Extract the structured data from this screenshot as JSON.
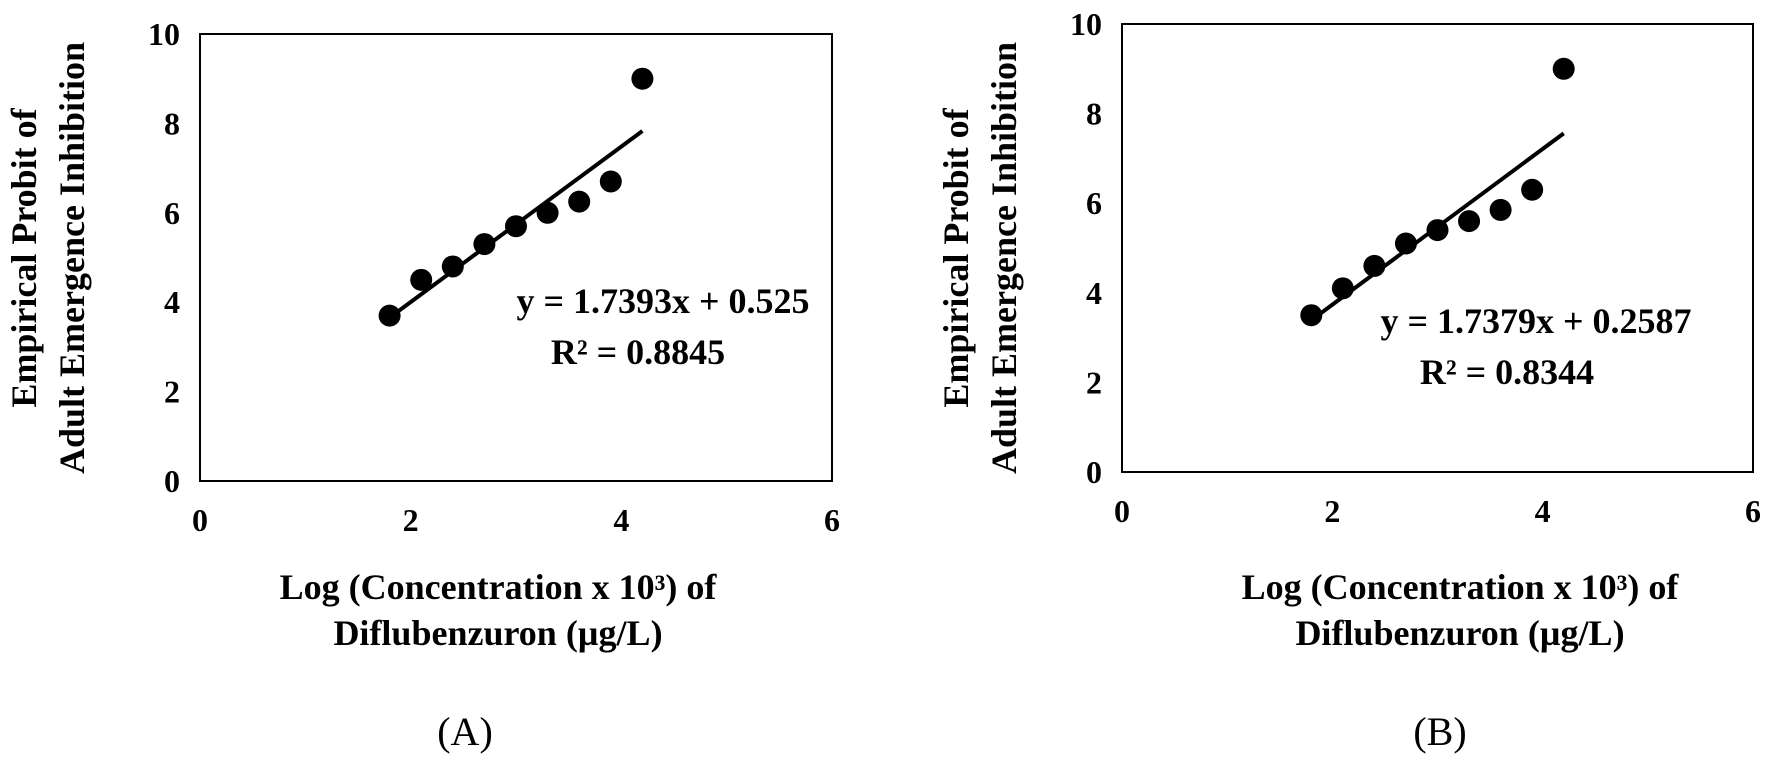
{
  "chart_data": [
    {
      "type": "scatter",
      "panel_label": "(A)",
      "xlabel_line1": "Log (Concentration x 10³) of",
      "xlabel_line2": "Diflubenzuron (µg/L)",
      "ylabel_line1": "Empirical Probit of",
      "ylabel_line2": "Adult Emergence Inhibition",
      "xlim": [
        0,
        6
      ],
      "ylim": [
        0,
        10
      ],
      "xticks": [
        "0",
        "2",
        "4",
        "6"
      ],
      "yticks": [
        "0",
        "2",
        "4",
        "6",
        "8",
        "10"
      ],
      "points": [
        {
          "x": 1.8,
          "y": 3.7
        },
        {
          "x": 2.1,
          "y": 4.5
        },
        {
          "x": 2.4,
          "y": 4.8
        },
        {
          "x": 2.7,
          "y": 5.3
        },
        {
          "x": 3.0,
          "y": 5.7
        },
        {
          "x": 3.3,
          "y": 6.0
        },
        {
          "x": 3.6,
          "y": 6.25
        },
        {
          "x": 3.9,
          "y": 6.7
        },
        {
          "x": 4.2,
          "y": 9.0
        }
      ],
      "trendline": {
        "slope": 1.7393,
        "intercept": 0.525,
        "x_start": 1.8,
        "x_end": 4.2
      },
      "equation": "y = 1.7393x + 0.525",
      "r_squared": "R² = 0.8845"
    },
    {
      "type": "scatter",
      "panel_label": "(B)",
      "xlabel_line1": "Log (Concentration x 10³) of",
      "xlabel_line2": "Diflubenzuron (µg/L)",
      "ylabel_line1": "Empirical Probit of",
      "ylabel_line2": "Adult Emergence Inhibition",
      "xlim": [
        0,
        6
      ],
      "ylim": [
        0,
        10
      ],
      "xticks": [
        "0",
        "2",
        "4",
        "6"
      ],
      "yticks": [
        "0",
        "2",
        "4",
        "6",
        "8",
        "10"
      ],
      "points": [
        {
          "x": 1.8,
          "y": 3.5
        },
        {
          "x": 2.1,
          "y": 4.1
        },
        {
          "x": 2.4,
          "y": 4.6
        },
        {
          "x": 2.7,
          "y": 5.1
        },
        {
          "x": 3.0,
          "y": 5.4
        },
        {
          "x": 3.3,
          "y": 5.6
        },
        {
          "x": 3.6,
          "y": 5.85
        },
        {
          "x": 3.9,
          "y": 6.3
        },
        {
          "x": 4.2,
          "y": 9.0
        }
      ],
      "trendline": {
        "slope": 1.7379,
        "intercept": 0.2587,
        "x_start": 1.8,
        "x_end": 4.2
      },
      "equation": "y = 1.7379x + 0.2587",
      "r_squared": "R² = 0.8344"
    }
  ]
}
